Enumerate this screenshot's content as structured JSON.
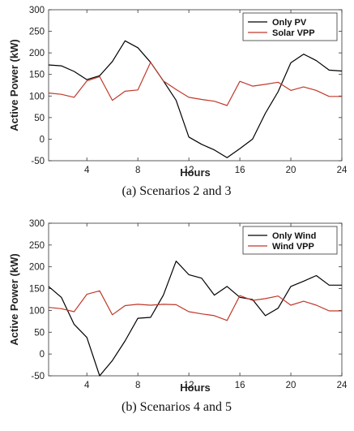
{
  "chart_data": [
    {
      "type": "line",
      "caption": "(a) Scenarios 2 and 3",
      "xlabel": "Hours",
      "ylabel": "Active Power (kW)",
      "xlim": [
        1,
        24
      ],
      "ylim": [
        -50,
        300
      ],
      "xticks": [
        4,
        8,
        12,
        16,
        20,
        24
      ],
      "yticks": [
        -50,
        0,
        50,
        100,
        150,
        200,
        250,
        300
      ],
      "legend_position": "top-right",
      "x": [
        1,
        2,
        3,
        4,
        5,
        6,
        7,
        8,
        9,
        10,
        11,
        12,
        13,
        14,
        15,
        16,
        17,
        18,
        19,
        20,
        21,
        22,
        23,
        24
      ],
      "series": [
        {
          "name": "Only PV",
          "color": "#000000",
          "values": [
            172,
            170,
            157,
            138,
            147,
            180,
            228,
            212,
            178,
            135,
            90,
            5,
            -12,
            -25,
            -43,
            -22,
            0,
            60,
            110,
            177,
            197,
            182,
            160,
            158
          ]
        },
        {
          "name": "Solar VPP",
          "color": "#c0392b",
          "values": [
            107,
            104,
            97,
            135,
            145,
            90,
            111,
            114,
            178,
            135,
            115,
            97,
            92,
            88,
            78,
            134,
            123,
            127,
            132,
            113,
            121,
            113,
            99,
            99
          ]
        }
      ]
    },
    {
      "type": "line",
      "caption": "(b) Scenarios 4 and 5",
      "xlabel": "Hours",
      "ylabel": "Active Power (kW)",
      "xlim": [
        1,
        24
      ],
      "ylim": [
        -50,
        300
      ],
      "xticks": [
        4,
        8,
        12,
        16,
        20,
        24
      ],
      "yticks": [
        -50,
        0,
        50,
        100,
        150,
        200,
        250,
        300
      ],
      "legend_position": "top-right",
      "x": [
        1,
        2,
        3,
        4,
        5,
        6,
        7,
        8,
        9,
        10,
        11,
        12,
        13,
        14,
        15,
        16,
        17,
        18,
        19,
        20,
        21,
        22,
        23,
        24
      ],
      "series": [
        {
          "name": "Only Wind",
          "color": "#000000",
          "values": [
            155,
            130,
            68,
            38,
            -50,
            -15,
            30,
            82,
            84,
            135,
            213,
            182,
            174,
            135,
            155,
            130,
            125,
            88,
            105,
            155,
            167,
            180,
            158,
            158
          ]
        },
        {
          "name": "Wind VPP",
          "color": "#c0392b",
          "values": [
            107,
            104,
            97,
            137,
            145,
            90,
            111,
            114,
            112,
            114,
            113,
            97,
            92,
            88,
            77,
            134,
            123,
            127,
            133,
            112,
            121,
            112,
            99,
            99
          ]
        }
      ]
    }
  ]
}
